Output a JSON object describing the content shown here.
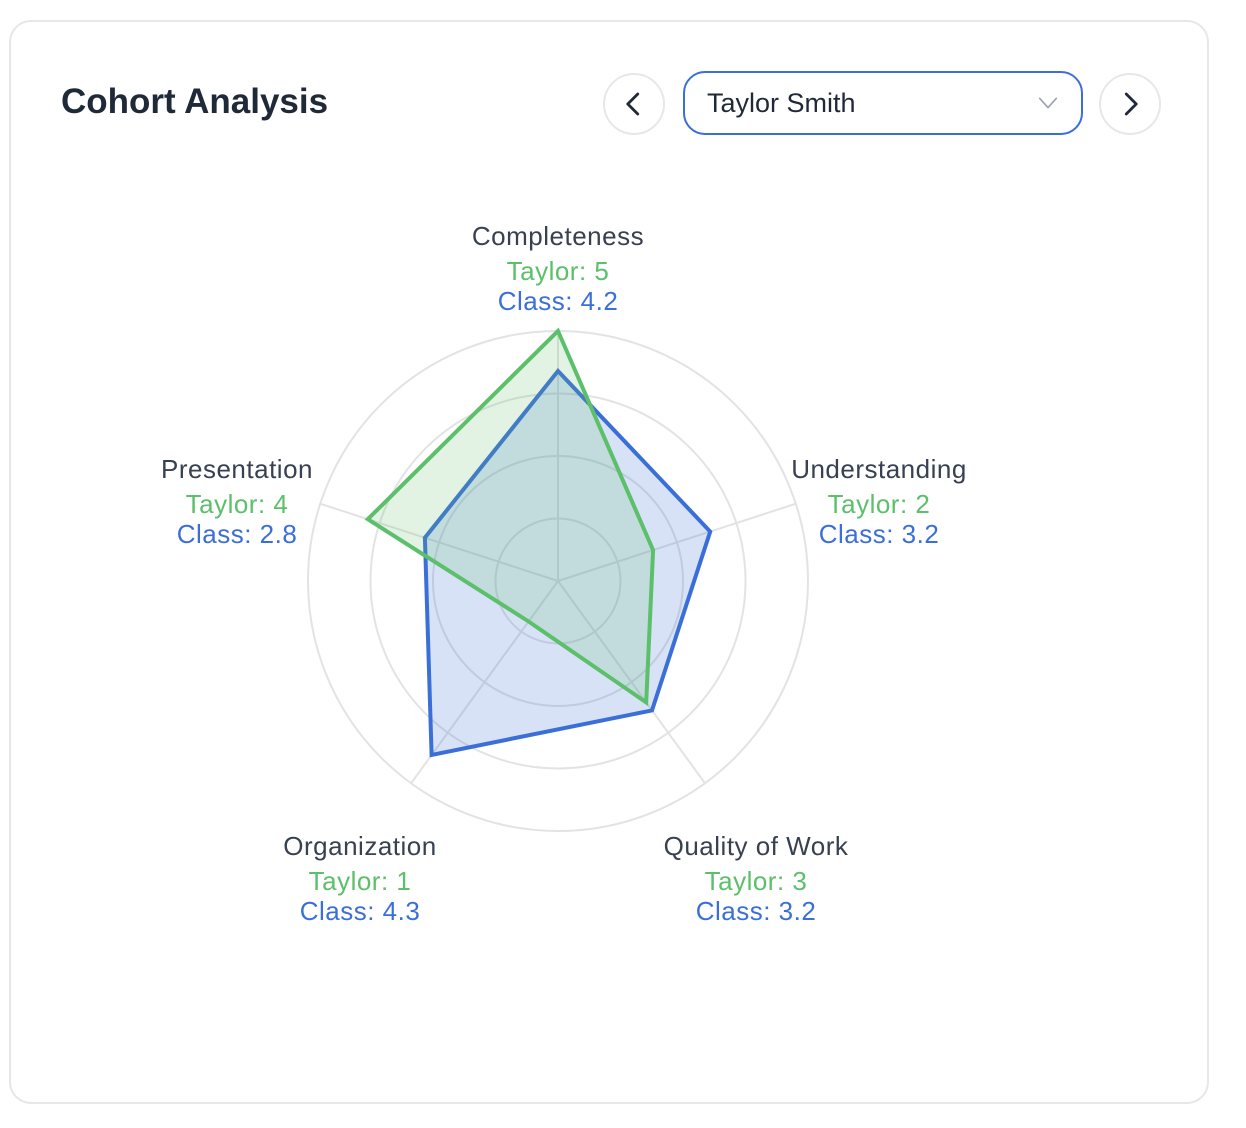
{
  "card": {
    "title": "Cohort Analysis"
  },
  "selector": {
    "value": "Taylor Smith"
  },
  "icons": {
    "prev": "chevron-left-icon",
    "next": "chevron-right-icon",
    "dropdown": "chevron-down-icon"
  },
  "colors": {
    "student": "#5cbf6a",
    "class": "#3b6fd8",
    "grid": "#e3e3e3",
    "label": "#374151"
  },
  "chart_data": {
    "type": "radar",
    "axes": [
      "Completeness",
      "Understanding",
      "Quality of Work",
      "Organization",
      "Presentation"
    ],
    "rlim": [
      0,
      5
    ],
    "grid": true,
    "series": [
      {
        "name": "Taylor",
        "values": [
          5,
          2,
          3,
          1,
          4
        ],
        "labels": [
          "Taylor: 5",
          "Taylor: 2",
          "Taylor: 3",
          "Taylor: 1",
          "Taylor: 4"
        ]
      },
      {
        "name": "Class",
        "values": [
          4.2,
          3.2,
          3.2,
          4.3,
          2.8
        ],
        "labels": [
          "Class: 4.2",
          "Class: 3.2",
          "Class: 3.2",
          "Class: 4.3",
          "Class: 2.8"
        ]
      }
    ]
  }
}
